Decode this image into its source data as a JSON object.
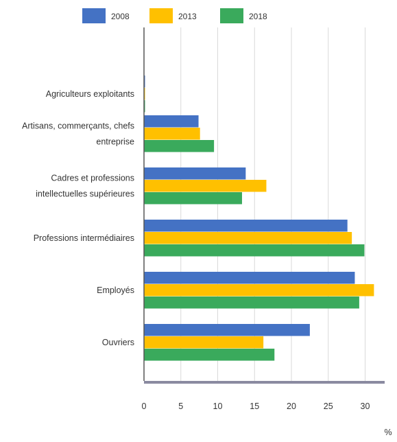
{
  "chart_data": {
    "type": "bar",
    "orientation": "horizontal",
    "categories": [
      [
        "Agriculteurs exploitants"
      ],
      [
        "Artisans, commerçants, chefs",
        "entreprise"
      ],
      [
        "Cadres et professions",
        "intellectuelles supérieures"
      ],
      [
        "Professions intermédiaires"
      ],
      [
        "Employés"
      ],
      [
        "Ouvriers"
      ]
    ],
    "series": [
      {
        "name": "2008",
        "color": "#4472C4",
        "values": [
          0.1,
          7.4,
          13.8,
          27.6,
          28.6,
          22.5
        ]
      },
      {
        "name": "2013",
        "color": "#FFC000",
        "values": [
          0.1,
          7.6,
          16.6,
          28.2,
          31.2,
          16.2
        ]
      },
      {
        "name": "2018",
        "color": "#3AAA5C",
        "values": [
          0.1,
          9.5,
          13.3,
          29.9,
          29.2,
          17.7
        ]
      }
    ],
    "xticks": [
      0,
      5,
      10,
      15,
      20,
      25,
      30
    ],
    "xlim": [
      0,
      32
    ],
    "xlabel": "%",
    "legend_position": "top",
    "grid": "vertical"
  }
}
